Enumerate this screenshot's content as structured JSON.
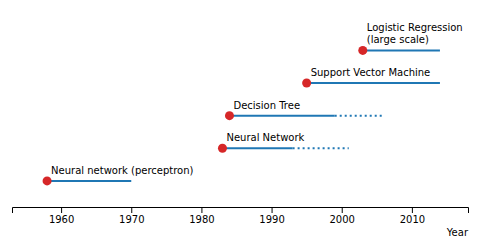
{
  "chart_data": {
    "type": "timeline",
    "x_label": "Year",
    "xlim": [
      1953,
      2018
    ],
    "xticks": [
      1960,
      1970,
      1980,
      1990,
      2000,
      2010
    ],
    "ylim": [
      0.2,
      6.3
    ],
    "tick_labels": "x",
    "series": [
      {
        "name": "Neural network (perceptron)",
        "dot_x": 1958,
        "solid_start": 1958,
        "solid_end": 1970,
        "dotted_start": null,
        "dotted_end": null,
        "y": 1
      },
      {
        "name": "Neural Network",
        "dot_x": 1983,
        "solid_start": 1983,
        "solid_end": 1993,
        "dotted_start": 1993,
        "dotted_end": 2001,
        "y": 2
      },
      {
        "name": "Decision Tree",
        "dot_x": 1984,
        "solid_start": 1984,
        "solid_end": 1999,
        "dotted_start": 1999,
        "dotted_end": 2006,
        "y": 3
      },
      {
        "name": "Support Vector Machine",
        "dot_x": 1995,
        "solid_start": 1995,
        "solid_end": 2014,
        "dotted_start": null,
        "dotted_end": null,
        "y": 4
      },
      {
        "name": "Logistic Regression\n(large scale)",
        "dot_x": 2003,
        "solid_start": 2003,
        "solid_end": 2014,
        "dotted_start": null,
        "dotted_end": null,
        "y": 5
      }
    ]
  }
}
